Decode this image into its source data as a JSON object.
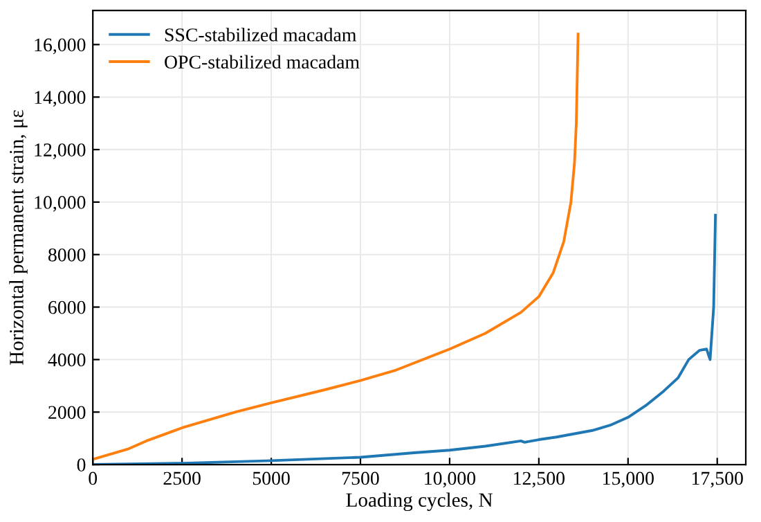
{
  "chart_data": {
    "type": "line",
    "xlabel": "Loading cycles, N",
    "ylabel": "Horizontal permanent strain, με",
    "xlim": [
      0,
      18300
    ],
    "ylim": [
      0,
      17300
    ],
    "xticks": [
      {
        "value": 0,
        "label": "0"
      },
      {
        "value": 2500,
        "label": "2500"
      },
      {
        "value": 5000,
        "label": "5000"
      },
      {
        "value": 7500,
        "label": "7500"
      },
      {
        "value": 10000,
        "label": "10,000"
      },
      {
        "value": 12500,
        "label": "12,500"
      },
      {
        "value": 15000,
        "label": "15,000"
      },
      {
        "value": 17500,
        "label": "17,500"
      }
    ],
    "yticks": [
      {
        "value": 0,
        "label": "0"
      },
      {
        "value": 2000,
        "label": "2000"
      },
      {
        "value": 4000,
        "label": "4000"
      },
      {
        "value": 6000,
        "label": "6000"
      },
      {
        "value": 8000,
        "label": "8000"
      },
      {
        "value": 10000,
        "label": "10,000"
      },
      {
        "value": 12000,
        "label": "12,000"
      },
      {
        "value": 14000,
        "label": "14,000"
      },
      {
        "value": 16000,
        "label": "16,000"
      }
    ],
    "grid": true,
    "legend": "top left",
    "marker": "none",
    "line_style": "solid",
    "series": [
      {
        "name": "SSC-stabilized macadam",
        "color": "#1f77b4",
        "x": [
          0,
          2500,
          5000,
          7500,
          9000,
          10000,
          11000,
          12000,
          12100,
          12500,
          13000,
          14000,
          14500,
          15000,
          15500,
          16000,
          16400,
          16700,
          17000,
          17200,
          17300,
          17400,
          17450
        ],
        "values": [
          0,
          50,
          150,
          280,
          450,
          550,
          700,
          900,
          850,
          950,
          1050,
          1300,
          1500,
          1800,
          2250,
          2800,
          3300,
          4000,
          4350,
          4400,
          4000,
          6000,
          9500
        ]
      },
      {
        "name": "OPC-stabilized macadam",
        "color": "#ff7f0e",
        "x": [
          0,
          1000,
          1500,
          2500,
          4000,
          5000,
          6500,
          7500,
          8500,
          10000,
          11000,
          12000,
          12500,
          12900,
          13200,
          13400,
          13500,
          13550,
          13600
        ],
        "values": [
          200,
          600,
          900,
          1400,
          2000,
          2350,
          2850,
          3200,
          3600,
          4400,
          5000,
          5800,
          6400,
          7300,
          8500,
          10000,
          11500,
          13000,
          16400
        ]
      }
    ]
  }
}
